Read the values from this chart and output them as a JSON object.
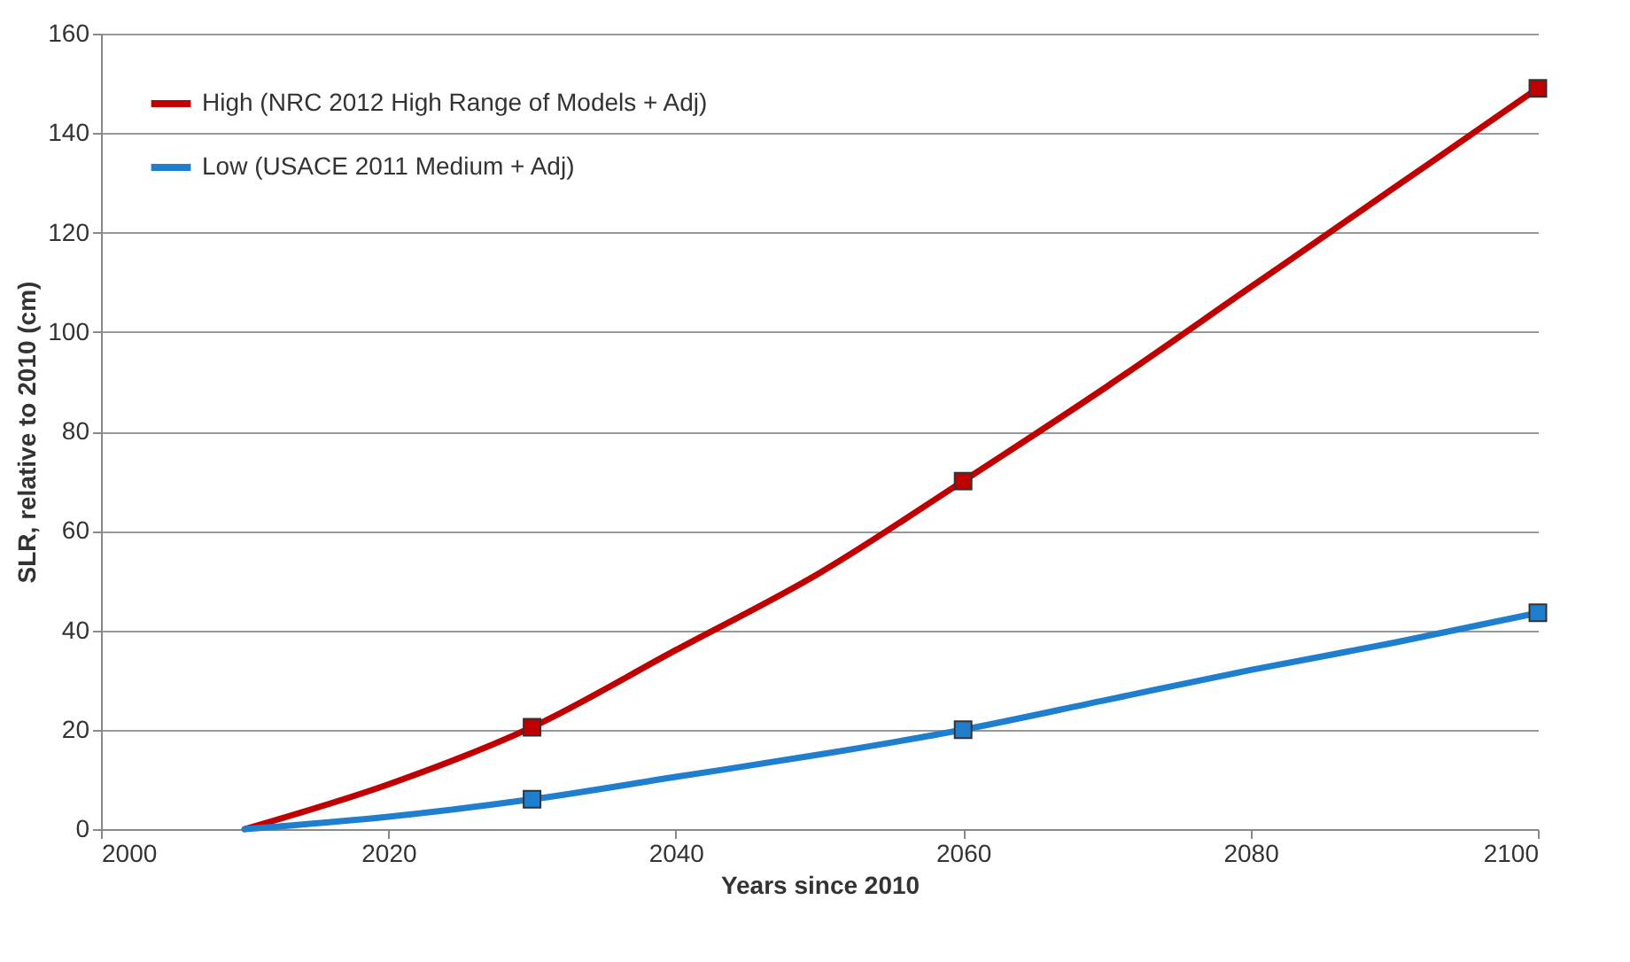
{
  "chart_data": {
    "type": "line",
    "xlabel": "Years since 2010",
    "ylabel": "SLR, relative to 2010 (cm)",
    "xlim": [
      2000,
      2100
    ],
    "xticks": [
      2000,
      2020,
      2040,
      2060,
      2080,
      2100
    ],
    "ylim": [
      0,
      160
    ],
    "yticks": [
      0,
      20,
      40,
      60,
      80,
      100,
      120,
      140,
      160
    ],
    "grid": "y",
    "legend": "top left",
    "series": [
      {
        "name": "High (NRC 2012 High Range of Models + Adj)",
        "color": "#c00000",
        "x": [
          2010,
          2020,
          2030,
          2040,
          2050,
          2060,
          2070,
          2080,
          2090,
          2100
        ],
        "values": [
          0,
          9,
          20.5,
          36,
          51.5,
          70,
          89,
          109,
          129,
          149
        ]
      },
      {
        "name": "Low (USACE 2011 Medium + Adj)",
        "color": "#1f7fce",
        "x": [
          2010,
          2020,
          2030,
          2040,
          2050,
          2060,
          2070,
          2080,
          2090,
          2100
        ],
        "values": [
          0,
          2.5,
          6,
          10.5,
          15,
          20,
          26,
          32,
          37.5,
          43.5
        ]
      },
      {
        "type": "scatter",
        "marker": "square",
        "color": "#c00000",
        "x": [
          2030,
          2060,
          2100
        ],
        "values": [
          20.5,
          70,
          149
        ]
      },
      {
        "type": "scatter",
        "marker": "square",
        "color": "#1f7fce",
        "x": [
          2030,
          2060,
          2100
        ],
        "values": [
          6,
          20,
          43.5
        ]
      }
    ]
  }
}
